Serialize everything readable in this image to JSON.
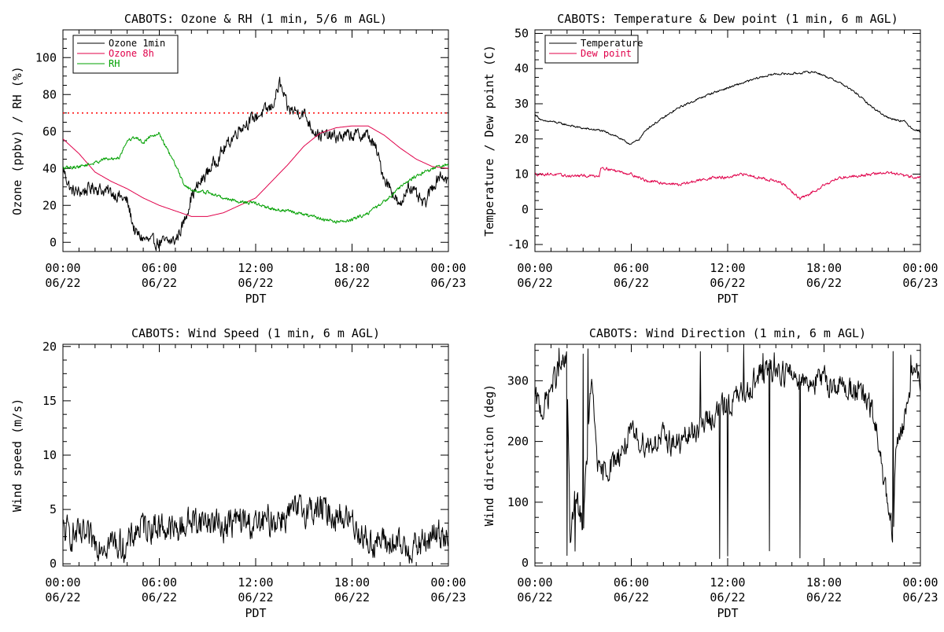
{
  "chart_data": [
    {
      "id": "ozone",
      "type": "line",
      "title": "CABOTS: Ozone & RH (1 min, 5/6 m AGL)",
      "xlabel": "PDT",
      "ylabel": "Ozone (ppbv) / RH (%)",
      "xlim": [
        0,
        24
      ],
      "ylim": [
        -5,
        115
      ],
      "yticks": [
        0,
        20,
        40,
        60,
        80,
        100
      ],
      "xticklabels": [
        [
          "00:00",
          "06/22"
        ],
        [
          "06:00",
          "06/22"
        ],
        [
          "12:00",
          "06/22"
        ],
        [
          "18:00",
          "06/22"
        ],
        [
          "00:00",
          "06/23"
        ]
      ],
      "legend_position": "top-left",
      "reference_line": {
        "y": 70,
        "color": "#ff0000",
        "style": "dotted"
      },
      "series": [
        {
          "name": "Ozone 1min",
          "color": "#000000",
          "noise": 3,
          "x": [
            0,
            0.5,
            1,
            2,
            2.5,
            3,
            3.5,
            4,
            4.5,
            5,
            5.5,
            6,
            6.5,
            7,
            7.5,
            8,
            9,
            10,
            11,
            12,
            13,
            13.5,
            14,
            15,
            15.5,
            16,
            17,
            18,
            19,
            19.5,
            20,
            20.5,
            21,
            21.5,
            22,
            22.5,
            23,
            23.5,
            24
          ],
          "y": [
            40,
            28,
            27,
            30,
            28,
            27,
            25,
            22,
            5,
            2,
            0,
            0,
            0,
            1,
            10,
            25,
            38,
            50,
            62,
            68,
            73,
            86,
            72,
            70,
            62,
            58,
            57,
            58,
            58,
            50,
            35,
            28,
            18,
            32,
            25,
            20,
            30,
            37,
            33
          ]
        },
        {
          "name": "Ozone 8h",
          "color": "#e0004a",
          "noise": 0,
          "x": [
            0,
            1,
            2,
            3,
            4,
            5,
            6,
            7,
            8,
            9,
            10,
            11,
            12,
            13,
            14,
            15,
            16,
            17,
            18,
            19,
            20,
            21,
            22,
            23,
            24
          ],
          "y": [
            56,
            48,
            38,
            33,
            29,
            24,
            20,
            17,
            14,
            14,
            16,
            20,
            24,
            33,
            42,
            52,
            59,
            62,
            63,
            63,
            58,
            51,
            45,
            41,
            40
          ]
        },
        {
          "name": "RH",
          "color": "#00a000",
          "noise": 0.8,
          "x": [
            0,
            1,
            2,
            2.5,
            3,
            3.5,
            4,
            4.5,
            5,
            5.5,
            6,
            6.5,
            7,
            7.5,
            8,
            9,
            10,
            11,
            12,
            13,
            14,
            15,
            16,
            17,
            18,
            19,
            20,
            21,
            22,
            23,
            24
          ],
          "y": [
            40,
            41,
            43,
            45,
            45,
            46,
            55,
            57,
            54,
            58,
            59,
            50,
            42,
            32,
            28,
            27,
            24,
            22,
            21,
            18,
            17,
            15,
            13,
            11,
            12,
            16,
            22,
            30,
            36,
            40,
            42
          ]
        }
      ]
    },
    {
      "id": "temp",
      "type": "line",
      "title": "CABOTS: Temperature & Dew point (1 min, 6 m AGL)",
      "xlabel": "PDT",
      "ylabel": "Temperature / Dew point (C)",
      "xlim": [
        0,
        24
      ],
      "ylim": [
        -12,
        51
      ],
      "yticks": [
        -10,
        0,
        10,
        20,
        30,
        40,
        50
      ],
      "xticklabels": [
        [
          "00:00",
          "06/22"
        ],
        [
          "06:00",
          "06/22"
        ],
        [
          "12:00",
          "06/22"
        ],
        [
          "18:00",
          "06/22"
        ],
        [
          "00:00",
          "06/23"
        ]
      ],
      "legend_position": "top-left",
      "series": [
        {
          "name": "Temperature",
          "color": "#000000",
          "noise": 0.25,
          "x": [
            0,
            0.5,
            1,
            2,
            3,
            4,
            5,
            5.5,
            6,
            6.5,
            7,
            8,
            9,
            10,
            11,
            12,
            13,
            14,
            15,
            16,
            17,
            17.5,
            18,
            19,
            20,
            21,
            22,
            23,
            23.5,
            24
          ],
          "y": [
            27,
            25,
            25,
            24,
            23,
            22.5,
            21,
            19.5,
            18.5,
            20,
            23,
            26,
            29,
            31,
            33,
            34.5,
            36,
            37.5,
            38.5,
            38.5,
            39,
            39,
            38,
            36,
            33,
            29,
            26,
            25,
            23,
            22
          ]
        },
        {
          "name": "Dew point",
          "color": "#e0004a",
          "noise": 0.35,
          "x": [
            0,
            1,
            2,
            3,
            4,
            4.1,
            5,
            6,
            7,
            8,
            9,
            10,
            11,
            12,
            13,
            14,
            15,
            15.5,
            16,
            16.5,
            17,
            18,
            19,
            20,
            21,
            22,
            23,
            24
          ],
          "y": [
            10,
            10,
            9.5,
            9.5,
            9.5,
            12,
            11,
            10,
            8,
            7.5,
            7,
            8,
            9,
            9,
            10,
            9,
            8,
            7,
            5,
            3,
            4,
            7,
            9,
            9.5,
            10,
            10.5,
            9.5,
            9
          ]
        }
      ]
    },
    {
      "id": "wind-speed",
      "type": "line",
      "title": "CABOTS: Wind Speed (1 min, 6 m AGL)",
      "xlabel": "PDT",
      "ylabel": "Wind speed (m/s)",
      "xlim": [
        0,
        24
      ],
      "ylim": [
        -0.2,
        20.2
      ],
      "yticks": [
        0,
        5,
        10,
        15,
        20
      ],
      "xticklabels": [
        [
          "00:00",
          "06/22"
        ],
        [
          "06:00",
          "06/22"
        ],
        [
          "12:00",
          "06/22"
        ],
        [
          "18:00",
          "06/22"
        ],
        [
          "00:00",
          "06/23"
        ]
      ],
      "series": [
        {
          "name": "",
          "color": "#000000",
          "noise": 1.2,
          "x": [
            0,
            1,
            2,
            3,
            4,
            4.5,
            5,
            6,
            7,
            8,
            9,
            10,
            11,
            12,
            13,
            14,
            15,
            16,
            17,
            18,
            19,
            20,
            21,
            22,
            23,
            24
          ],
          "y": [
            3,
            2.5,
            2,
            2,
            1.5,
            3,
            3.5,
            3.5,
            3,
            4,
            4,
            3.5,
            4,
            3.5,
            4,
            4.5,
            5,
            5,
            4.5,
            4,
            2,
            2,
            1.5,
            1.5,
            2.5,
            3
          ]
        }
      ]
    },
    {
      "id": "wind-dir",
      "type": "line",
      "title": "CABOTS: Wind Direction (1 min, 6 m AGL)",
      "xlabel": "PDT",
      "ylabel": "Wind direction (deg)",
      "xlim": [
        0,
        24
      ],
      "ylim": [
        -5,
        360
      ],
      "yticks": [
        0,
        100,
        200,
        300
      ],
      "xticklabels": [
        [
          "00:00",
          "06/22"
        ],
        [
          "06:00",
          "06/22"
        ],
        [
          "12:00",
          "06/22"
        ],
        [
          "18:00",
          "06/22"
        ],
        [
          "00:00",
          "06/23"
        ]
      ],
      "series": [
        {
          "name": "",
          "color": "#000000",
          "noise": 18,
          "spike_hours": [
            1.5,
            2,
            2.5,
            3,
            3.3,
            10.3,
            11.5,
            12,
            13,
            14.2,
            14.6,
            14.9,
            16.5,
            22.3,
            23.4
          ],
          "x": [
            0,
            0.5,
            1,
            1.5,
            2,
            2.2,
            2.5,
            3,
            3.5,
            4,
            5,
            5.5,
            6,
            7,
            8,
            9,
            10,
            11,
            12,
            13,
            14,
            15,
            16,
            17,
            18,
            19,
            20,
            20.5,
            21,
            21.5,
            22,
            22.3,
            22.5,
            23,
            23.5,
            24
          ],
          "y": [
            270,
            250,
            290,
            320,
            330,
            30,
            110,
            60,
            300,
            140,
            170,
            190,
            210,
            195,
            205,
            195,
            220,
            240,
            260,
            280,
            310,
            320,
            310,
            300,
            300,
            290,
            285,
            270,
            250,
            180,
            80,
            40,
            200,
            230,
            320,
            300
          ]
        }
      ]
    }
  ]
}
